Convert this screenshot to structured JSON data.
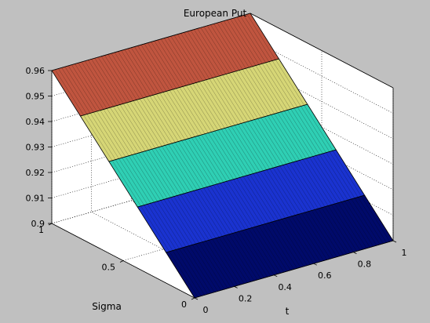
{
  "chart_data": {
    "type": "surface",
    "title": "European Put",
    "xlabel": "t",
    "ylabel": "Sigma",
    "zlabel": "",
    "x_ticks": [
      "0",
      "0.2",
      "0.4",
      "0.6",
      "0.8",
      "1"
    ],
    "y_ticks": [
      "0",
      "0.5",
      "1"
    ],
    "z_ticks": [
      "0.9",
      "0.91",
      "0.92",
      "0.93",
      "0.94",
      "0.95",
      "0.96"
    ],
    "xlim": [
      0,
      1
    ],
    "ylim": [
      0,
      1
    ],
    "zlim": [
      0.9,
      0.96
    ],
    "grid": true,
    "colormap": "jet",
    "surface": {
      "t": [
        0,
        1
      ],
      "sigma": [
        0,
        0.2,
        0.4,
        0.6,
        0.8,
        1
      ],
      "z": [
        [
          0.9,
          0.9
        ],
        [
          0.912,
          0.912
        ],
        [
          0.924,
          0.924
        ],
        [
          0.936,
          0.936
        ],
        [
          0.948,
          0.948
        ],
        [
          0.96,
          0.96
        ]
      ]
    },
    "band_colors": [
      "#000a6a",
      "#1a33d0",
      "#2fcfb4",
      "#d6d676",
      "#c0553f"
    ],
    "axes_background": "#ffffff",
    "figure_background": "#c0c0c0"
  }
}
